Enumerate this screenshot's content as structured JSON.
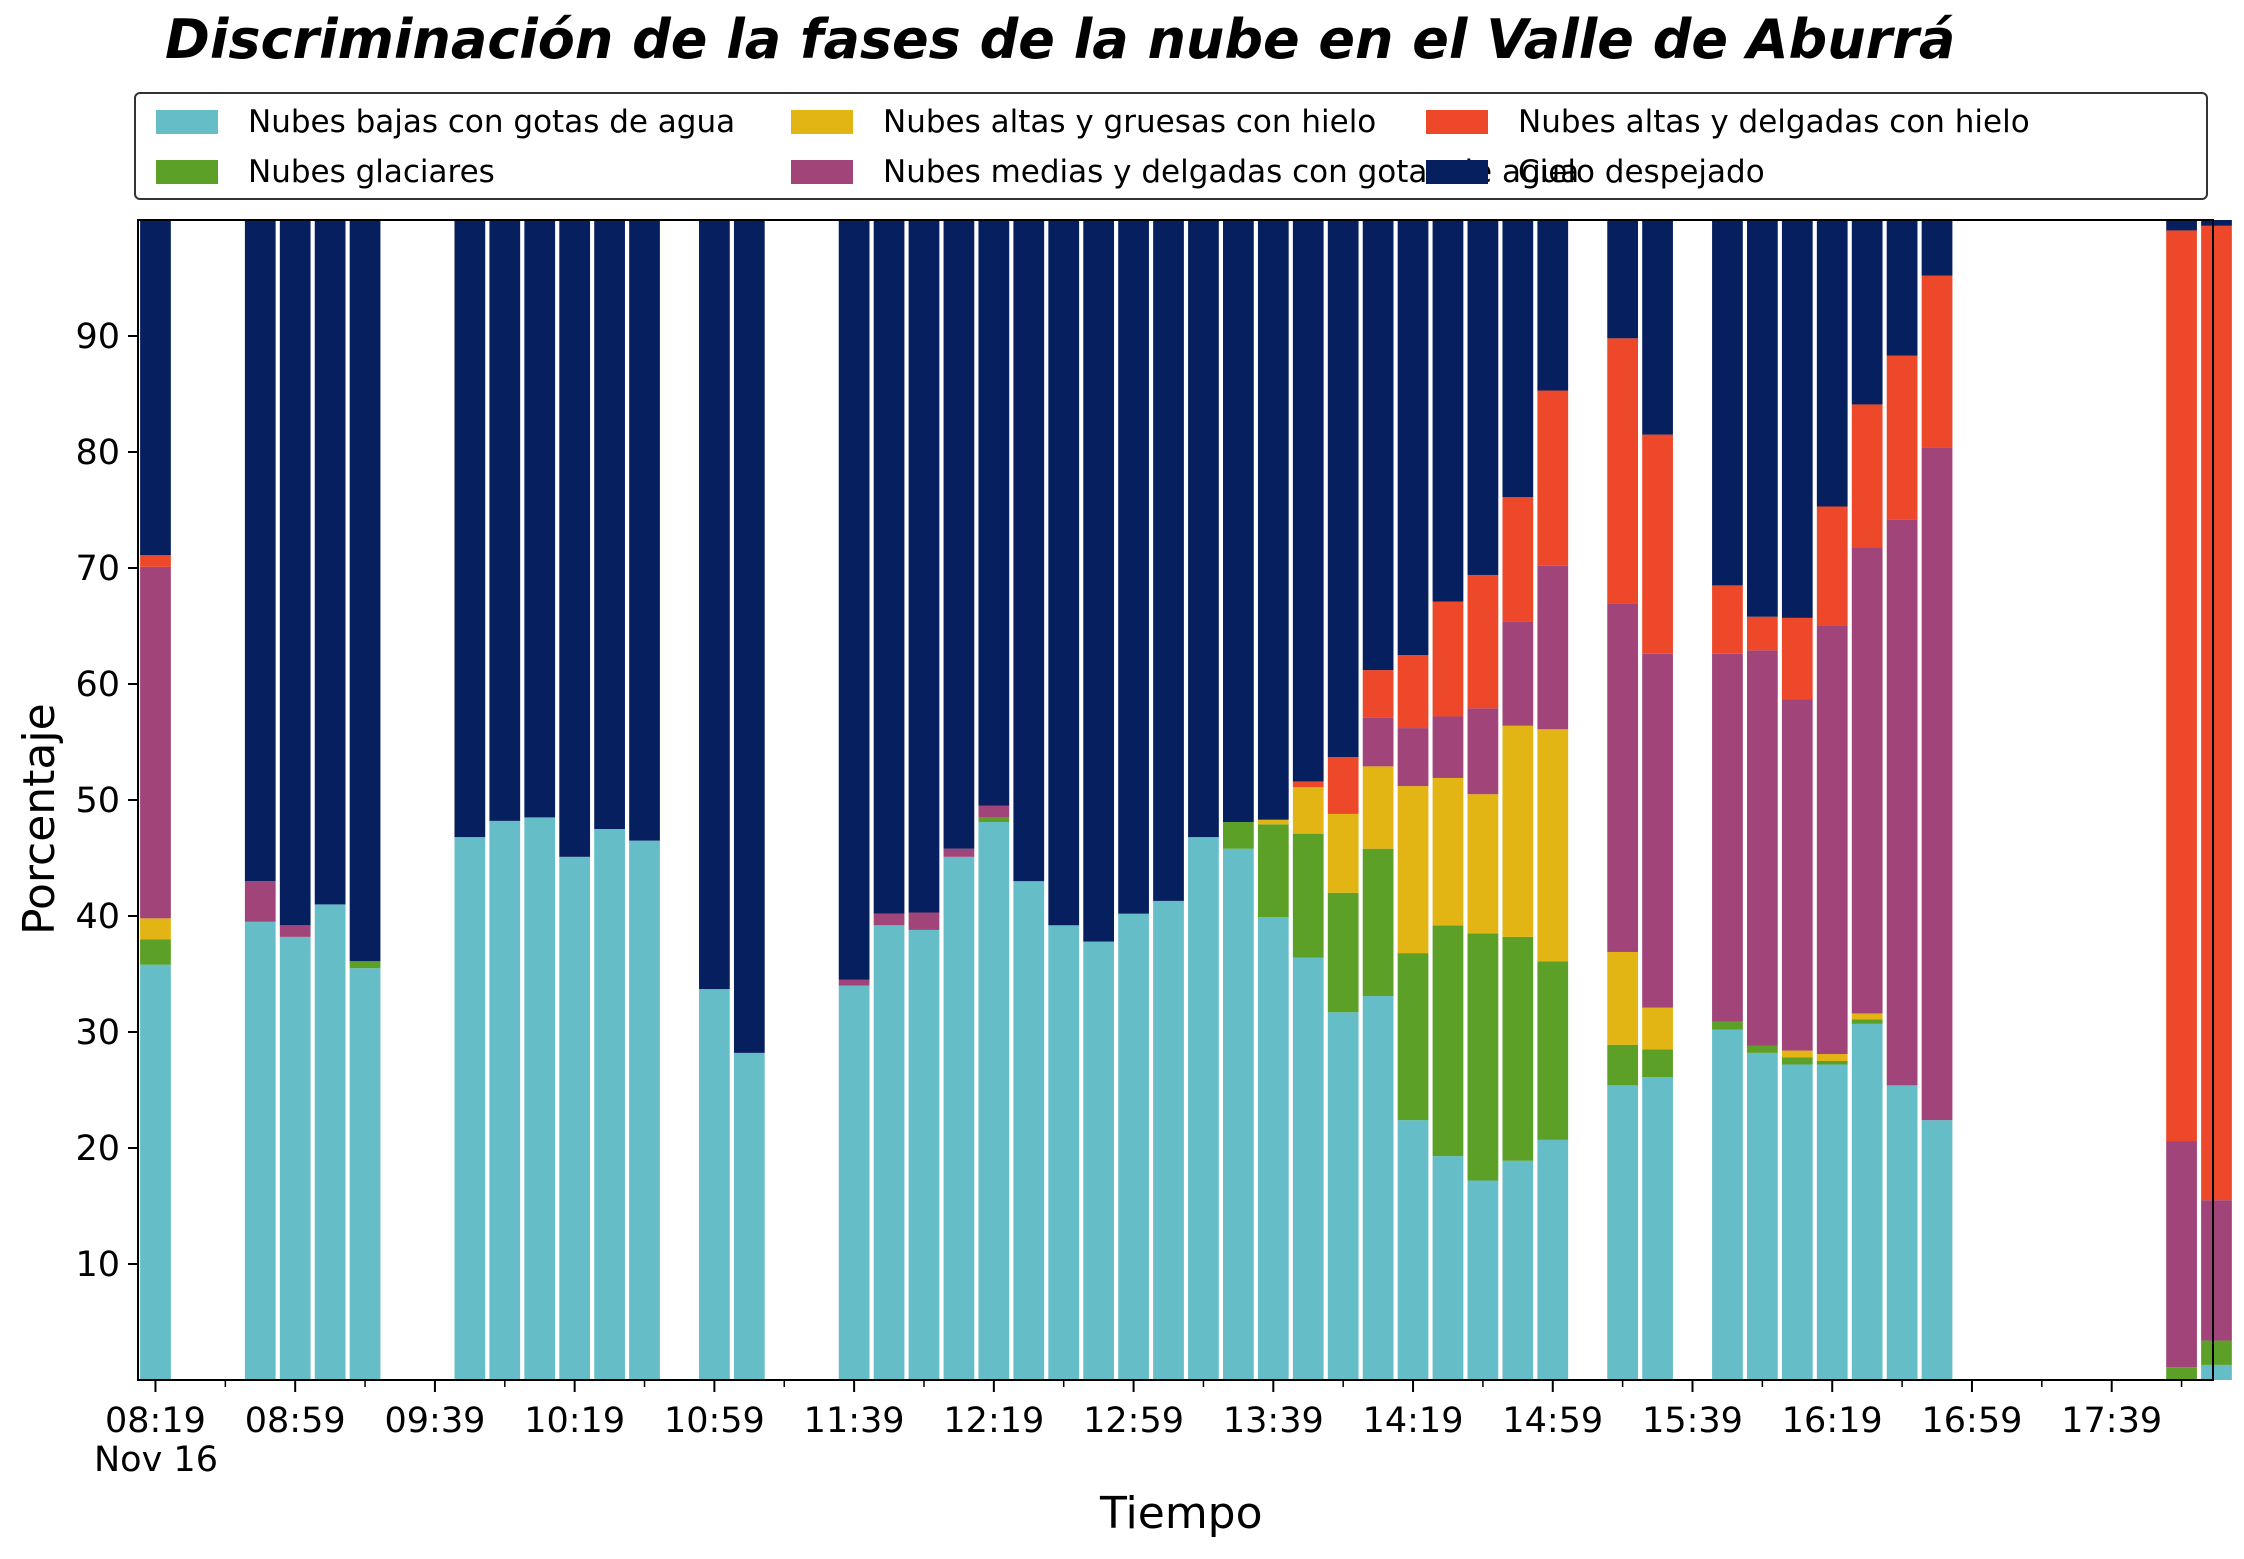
{
  "chart_data": {
    "type": "bar",
    "stacked": true,
    "title": "Discriminación de la fases de la nube en el Valle de Aburrá",
    "xlabel": "Tiempo",
    "ylabel": "Porcentaje",
    "date_label": "Nov 16",
    "ylim": [
      0,
      100
    ],
    "yticks": [
      10,
      20,
      30,
      40,
      50,
      60,
      70,
      80,
      90
    ],
    "xlim": [
      "08:14",
      "18:08"
    ],
    "xticks": [
      "08:19",
      "08:59",
      "09:39",
      "10:19",
      "10:59",
      "11:39",
      "12:19",
      "12:59",
      "13:39",
      "14:19",
      "14:59",
      "15:39",
      "16:19",
      "16:59",
      "17:39"
    ],
    "grid": false,
    "legend_position": "top",
    "series": [
      {
        "name": "Nubes bajas con gotas de agua",
        "color": "#65bdc8"
      },
      {
        "name": "Nubes glaciares",
        "color": "#5ca028"
      },
      {
        "name": "Nubes altas y gruesas con hielo",
        "color": "#e2b514"
      },
      {
        "name": "Nubes medias y delgadas con gotas de agua",
        "color": "#a04479"
      },
      {
        "name": "Nubes altas y delgadas con hielo",
        "color": "#ec4829"
      },
      {
        "name": "Cielo despejado",
        "color": "#061f5e"
      }
    ],
    "bars": [
      {
        "time": "08:19",
        "values": [
          35.8,
          2.2,
          1.8,
          30.3,
          1.0,
          28.9
        ]
      },
      {
        "time": "08:49",
        "values": [
          39.5,
          0,
          0,
          3.5,
          0,
          57.0
        ]
      },
      {
        "time": "08:59",
        "values": [
          38.2,
          0,
          0,
          1.0,
          0,
          60.8
        ]
      },
      {
        "time": "09:09",
        "values": [
          41.0,
          0,
          0,
          0,
          0,
          59.0
        ]
      },
      {
        "time": "09:19",
        "values": [
          35.5,
          0.6,
          0,
          0,
          0,
          63.9
        ]
      },
      {
        "time": "09:49",
        "values": [
          46.8,
          0,
          0,
          0,
          0,
          53.2
        ]
      },
      {
        "time": "09:59",
        "values": [
          48.2,
          0,
          0,
          0,
          0,
          51.8
        ]
      },
      {
        "time": "10:09",
        "values": [
          48.5,
          0,
          0,
          0,
          0,
          51.5
        ]
      },
      {
        "time": "10:19",
        "values": [
          45.1,
          0,
          0,
          0,
          0,
          54.9
        ]
      },
      {
        "time": "10:29",
        "values": [
          47.5,
          0,
          0,
          0,
          0,
          52.5
        ]
      },
      {
        "time": "10:39",
        "values": [
          46.5,
          0,
          0,
          0,
          0,
          53.5
        ]
      },
      {
        "time": "10:59",
        "values": [
          33.7,
          0,
          0,
          0,
          0,
          66.3
        ]
      },
      {
        "time": "11:09",
        "values": [
          28.2,
          0,
          0,
          0,
          0,
          71.8
        ]
      },
      {
        "time": "11:39",
        "values": [
          34.0,
          0,
          0,
          0.5,
          0,
          65.5
        ]
      },
      {
        "time": "11:49",
        "values": [
          39.2,
          0,
          0,
          1.0,
          0,
          59.8
        ]
      },
      {
        "time": "11:59",
        "values": [
          38.8,
          0,
          0,
          1.5,
          0,
          59.7
        ]
      },
      {
        "time": "12:09",
        "values": [
          45.1,
          0,
          0,
          0.7,
          0,
          54.2
        ]
      },
      {
        "time": "12:19",
        "values": [
          48.1,
          0.4,
          0,
          1.0,
          0,
          50.5
        ]
      },
      {
        "time": "12:29",
        "values": [
          43.0,
          0,
          0,
          0,
          0,
          57.0
        ]
      },
      {
        "time": "12:39",
        "values": [
          39.2,
          0,
          0,
          0,
          0,
          60.8
        ]
      },
      {
        "time": "12:49",
        "values": [
          37.8,
          0,
          0,
          0,
          0,
          62.2
        ]
      },
      {
        "time": "12:59",
        "values": [
          40.2,
          0,
          0,
          0,
          0,
          59.8
        ]
      },
      {
        "time": "13:09",
        "values": [
          41.3,
          0,
          0,
          0,
          0,
          58.7
        ]
      },
      {
        "time": "13:19",
        "values": [
          46.8,
          0,
          0,
          0,
          0,
          53.2
        ]
      },
      {
        "time": "13:29",
        "values": [
          45.8,
          2.3,
          0,
          0,
          0,
          51.9
        ]
      },
      {
        "time": "13:39",
        "values": [
          39.9,
          8.0,
          0.4,
          0,
          0,
          51.7
        ]
      },
      {
        "time": "13:49",
        "values": [
          36.4,
          10.7,
          4.0,
          0,
          0.5,
          48.4
        ]
      },
      {
        "time": "13:59",
        "values": [
          31.7,
          10.3,
          6.8,
          0,
          4.9,
          46.3
        ]
      },
      {
        "time": "14:09",
        "values": [
          33.1,
          12.7,
          7.1,
          4.2,
          4.1,
          38.8
        ]
      },
      {
        "time": "14:19",
        "values": [
          22.4,
          14.4,
          14.4,
          5.0,
          6.3,
          37.5
        ]
      },
      {
        "time": "14:29",
        "values": [
          19.3,
          19.9,
          12.7,
          5.3,
          9.9,
          32.9
        ]
      },
      {
        "time": "14:39",
        "values": [
          17.2,
          21.3,
          12.0,
          7.4,
          11.5,
          30.6
        ]
      },
      {
        "time": "14:49",
        "values": [
          18.9,
          19.3,
          18.2,
          9.0,
          10.7,
          23.9
        ]
      },
      {
        "time": "14:59",
        "values": [
          20.7,
          15.4,
          20.0,
          14.1,
          15.1,
          14.7
        ]
      },
      {
        "time": "15:19",
        "values": [
          25.4,
          3.5,
          8.0,
          30.0,
          22.9,
          10.2
        ]
      },
      {
        "time": "15:29",
        "values": [
          26.1,
          2.4,
          3.6,
          30.5,
          18.9,
          18.5
        ]
      },
      {
        "time": "15:49",
        "values": [
          30.2,
          0.7,
          0,
          31.7,
          5.9,
          31.5
        ]
      },
      {
        "time": "15:59",
        "values": [
          28.2,
          0.6,
          0,
          34.1,
          2.9,
          34.2
        ]
      },
      {
        "time": "16:09",
        "values": [
          27.2,
          0.6,
          0.6,
          30.3,
          7.0,
          34.3
        ]
      },
      {
        "time": "16:19",
        "values": [
          27.2,
          0.3,
          0.6,
          36.9,
          10.3,
          24.7
        ]
      },
      {
        "time": "16:29",
        "values": [
          30.7,
          0.4,
          0.5,
          40.2,
          12.3,
          15.9
        ]
      },
      {
        "time": "16:39",
        "values": [
          25.4,
          0,
          0,
          48.8,
          14.1,
          11.7
        ]
      },
      {
        "time": "16:49",
        "values": [
          22.4,
          0,
          0,
          58.0,
          14.8,
          4.8
        ]
      },
      {
        "time": "17:59",
        "values": [
          0,
          1.1,
          0,
          19.5,
          78.5,
          0.9
        ]
      },
      {
        "time": "18:09",
        "values": [
          1.3,
          2.1,
          0,
          12.1,
          84.0,
          0.5
        ]
      }
    ]
  }
}
